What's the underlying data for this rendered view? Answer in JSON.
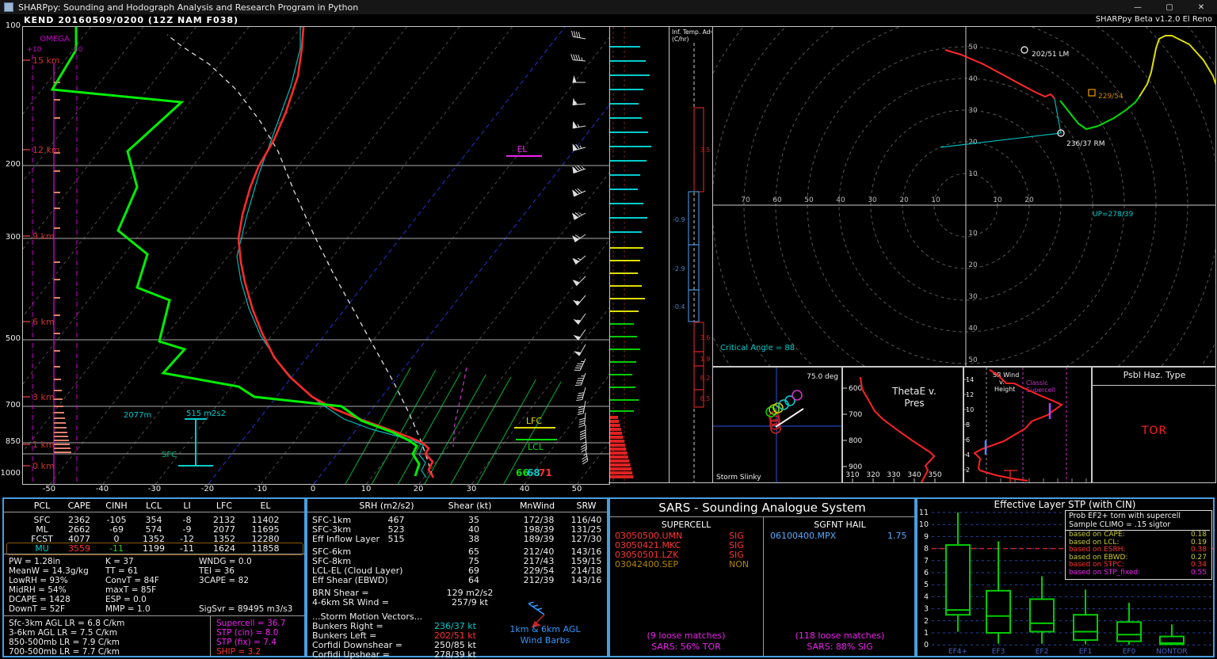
{
  "window": {
    "title": "SHARPpy: Sounding and Hodograph Analysis and Research Program in Python",
    "minimize": "—",
    "maximize": "▢",
    "close": "✕"
  },
  "header": {
    "station_line": "KEND   20160509/0200  (12Z NAM F038)",
    "version": "SHARPpy Beta v1.2.0 El Reno"
  },
  "skewt": {
    "pressure_labels": [
      "100",
      "200",
      "300",
      "500",
      "700",
      "850",
      "1000"
    ],
    "height_labels": [
      "15 km",
      "12 km",
      "9 km",
      "6 km",
      "3 km",
      "1 km",
      "0 km"
    ],
    "temp_labels": [
      "-50",
      "-40",
      "-30",
      "-20",
      "-10",
      "0",
      "10",
      "20",
      "30",
      "40",
      "50"
    ],
    "omega_title": "OMEGA",
    "omega_plus": "+10",
    "omega_minus": "-10",
    "el_label": "EL",
    "lfc_label": "LFC",
    "lcl_label": "LCL",
    "sfc_label": "SFC",
    "sfc_dewpoint": "66",
    "sfc_wetbulb": "68",
    "sfc_temp": "71",
    "eil_height": "2077m",
    "eil_srh": "515 m2s2"
  },
  "temp_adv": {
    "title": "Inf. Temp. Adv.",
    "units": "(C/hr)",
    "segments": [
      {
        "value": "3.5",
        "sign": "pos"
      },
      {
        "value": "-0.9",
        "sign": "neg"
      },
      {
        "value": "-2.9",
        "sign": "neg"
      },
      {
        "value": "-0.4",
        "sign": "neg"
      },
      {
        "value": "3.6",
        "sign": "pos"
      },
      {
        "value": "1.9",
        "sign": "pos"
      },
      {
        "value": "8.2",
        "sign": "pos"
      },
      {
        "value": "8.5",
        "sign": "pos"
      }
    ]
  },
  "hodo": {
    "labels_left": [
      "70",
      "60",
      "50",
      "40",
      "30",
      "20",
      "10"
    ],
    "labels_right": [
      "10",
      "20"
    ],
    "labels_up": [
      "10",
      "20",
      "30",
      "40",
      "50"
    ],
    "labels_down": [
      "10",
      "20",
      "30",
      "40",
      "50"
    ],
    "lm_label": "202/51 LM",
    "mean_label": "229/54",
    "rm_label": "236/37 RM",
    "up_label": "UP=278/39",
    "critical_angle": "Critical Angle = 88"
  },
  "slinky": {
    "title": "Storm Slinky",
    "angle": "75.0 deg"
  },
  "thetae": {
    "title_1": "ThetaE v.",
    "title_2": "Pres",
    "x_ticks": [
      "310",
      "320",
      "330",
      "340",
      "350"
    ],
    "y_ticks": [
      "600",
      "700",
      "800",
      "900"
    ]
  },
  "srwind": {
    "title_1": "SR Wind",
    "title_2": "v.",
    "title_3": "Height",
    "classic_1": "Classic",
    "classic_2": "Supercell",
    "y_ticks": [
      "14",
      "12",
      "10",
      "8",
      "6",
      "4",
      "2"
    ]
  },
  "hazard": {
    "title": "Psbl Haz. Type",
    "value": "TOR"
  },
  "parcels": {
    "headers": [
      "PCL",
      "CAPE",
      "CINH",
      "LCL",
      "LI",
      "LFC",
      "EL"
    ],
    "rows": [
      {
        "name": "SFC",
        "cape": "2362",
        "cinh": "-105",
        "lcl": "354",
        "li": "-8",
        "lfc": "2132",
        "el": "11402"
      },
      {
        "name": "ML",
        "cape": "2662",
        "cinh": "-69",
        "lcl": "574",
        "li": "-9",
        "lfc": "2077",
        "el": "11695"
      },
      {
        "name": "FCST",
        "cape": "4077",
        "cinh": "0",
        "lcl": "1352",
        "li": "-12",
        "lfc": "1352",
        "el": "12280"
      },
      {
        "name": "MU",
        "cape": "3559",
        "cinh": "-11",
        "lcl": "1199",
        "li": "-11",
        "lfc": "1624",
        "el": "11858"
      }
    ],
    "selected": "MU"
  },
  "thermo": {
    "col1": [
      "PW = 1.28in",
      "MeanW = 14.3g/kg",
      "LowRH = 93%",
      "MidRH = 54%",
      "DCAPE = 1428",
      "DownT = 52F"
    ],
    "col2": [
      "K = 37",
      "TT = 61",
      "ConvT = 84F",
      "maxT = 85F",
      "ESP = 0.0",
      "MMP = 1.0"
    ],
    "col3": [
      "WNDG = 0.0",
      "TEI = 36",
      "3CAPE = 82",
      "",
      "",
      "SigSvr = 89495 m3/s3"
    ]
  },
  "lapse_rates": [
    "Sfc-3km AGL LR = 6.8 C/km",
    "3-6km AGL LR = 7.5 C/km",
    "850-500mb LR = 7.9 C/km",
    "700-500mb LR = 7.7 C/km"
  ],
  "composites": [
    {
      "text": "Supercell = 36.7",
      "color": "#ee22ee"
    },
    {
      "text": "STP (cin) = 8.0",
      "color": "#ee22ee"
    },
    {
      "text": "STP (fix) = 7.4",
      "color": "#ee22ee"
    },
    {
      "text": "SHIP = 3.2",
      "color": "#ff3333"
    }
  ],
  "kinematics": {
    "headers": [
      "SRH (m2/s2)",
      "Shear (kt)",
      "MnWind",
      "SRW"
    ],
    "rows_top": [
      {
        "label": "SFC-1km",
        "srh": "467",
        "shear": "35",
        "mnwind": "172/38",
        "srw": "116/40"
      },
      {
        "label": "SFC-3km",
        "srh": "523",
        "shear": "40",
        "mnwind": "198/39",
        "srw": "131/25"
      },
      {
        "label": "Eff Inflow Layer",
        "srh": "515",
        "shear": "38",
        "mnwind": "189/39",
        "srw": "127/30"
      }
    ],
    "rows_mid": [
      {
        "label": "SFC-6km",
        "srh": "",
        "shear": "65",
        "mnwind": "212/40",
        "srw": "143/16"
      },
      {
        "label": "SFC-8km",
        "srh": "",
        "shear": "75",
        "mnwind": "217/43",
        "srw": "159/15"
      },
      {
        "label": "LCL-EL (Cloud Layer)",
        "srh": "",
        "shear": "69",
        "mnwind": "229/54",
        "srw": "214/18"
      },
      {
        "label": "Eff Shear (EBWD)",
        "srh": "",
        "shear": "64",
        "mnwind": "212/39",
        "srw": "143/16"
      }
    ],
    "brn_label": "BRN Shear =",
    "brn_value": "129 m2/s2",
    "sr46_label": "4-6km SR Wind =",
    "sr46_value": "257/9 kt",
    "smv_title": "...Storm Motion Vectors...",
    "smv_rows": [
      {
        "label": "Bunkers Right =",
        "value": "236/37 kt",
        "color": "#00cccc"
      },
      {
        "label": "Bunkers Left =",
        "value": "202/51 kt",
        "color": "#ff3333"
      },
      {
        "label": "Corfidi Downshear =",
        "value": "250/85 kt",
        "color": "#eeeeee"
      },
      {
        "label": "Corfidi Upshear =",
        "value": "278/39 kt",
        "color": "#eeeeee"
      }
    ],
    "barb_caption_1": "1km & 6km AGL",
    "barb_caption_2": "Wind Barbs"
  },
  "sars": {
    "title": "SARS - Sounding Analogue System",
    "supercell_header": "SUPERCELL",
    "hail_header": "SGFNT HAIL",
    "supercell_matches": [
      {
        "id": "03050500.UMN",
        "cat": "SIG",
        "color": "#ff3333"
      },
      {
        "id": "03050421.MKC",
        "cat": "SIG",
        "color": "#ff3333"
      },
      {
        "id": "03050501.LZK",
        "cat": "SIG",
        "color": "#ff3333"
      },
      {
        "id": "03042400.SEP",
        "cat": "NON",
        "color": "#b08400"
      }
    ],
    "hail_matches": [
      {
        "id": "06100400.MPX",
        "value": "1.75",
        "color": "#55aaff"
      }
    ],
    "supercell_summary_1": "(9 loose matches)",
    "supercell_summary_2": "SARS: 56% TOR",
    "hail_summary_1": "(118 loose matches)",
    "hail_summary_2": "SARS: 88% SIG"
  },
  "stp": {
    "title": "Effective Layer STP (with CIN)",
    "y_ticks": [
      "11",
      "10",
      "9",
      "8",
      "7",
      "6",
      "5",
      "4",
      "3",
      "2",
      "1",
      "0"
    ],
    "legend_title_1": "Prob EF2+ torn with supercell",
    "legend_title_2": "Sample CLIMO = .15 sigtor",
    "legend_rows": [
      {
        "label": "based on CAPE:",
        "value": "0.18",
        "color": "#cccc33"
      },
      {
        "label": "based on LCL:",
        "value": "0.19",
        "color": "#cccc33"
      },
      {
        "label": "based on ESRH:",
        "value": "0.38",
        "color": "#ff3333"
      },
      {
        "label": "based on EBWD:",
        "value": "0.27",
        "color": "#cccc33"
      },
      {
        "label": "based on STPC:",
        "value": "0.34",
        "color": "#ff3333"
      },
      {
        "label": "based on STP_fixed:",
        "value": "0.55",
        "color": "#ee22ee"
      }
    ],
    "chart_data": {
      "type": "boxplot",
      "categories": [
        "EF4+",
        "EF3",
        "EF2",
        "EF1",
        "EF0",
        "NONTOR"
      ],
      "ylim": [
        0,
        11
      ],
      "reference_line": 8.0,
      "boxes": [
        {
          "cat": "EF4+",
          "lo": 1.1,
          "q1": 2.5,
          "med": 2.9,
          "q3": 8.3,
          "hi": 11.0
        },
        {
          "cat": "EF3",
          "lo": 0.1,
          "q1": 1.0,
          "med": 2.4,
          "q3": 4.5,
          "hi": 8.6
        },
        {
          "cat": "EF2",
          "lo": 0.1,
          "q1": 1.1,
          "med": 1.8,
          "q3": 3.8,
          "hi": 5.7
        },
        {
          "cat": "EF1",
          "lo": 0.05,
          "q1": 0.4,
          "med": 1.1,
          "q3": 2.5,
          "hi": 4.6
        },
        {
          "cat": "EF0",
          "lo": 0.02,
          "q1": 0.3,
          "med": 0.85,
          "q3": 1.9,
          "hi": 3.5
        },
        {
          "cat": "NONTOR",
          "lo": 0.0,
          "q1": 0.05,
          "med": 0.15,
          "q3": 0.7,
          "hi": 1.7
        }
      ]
    }
  }
}
